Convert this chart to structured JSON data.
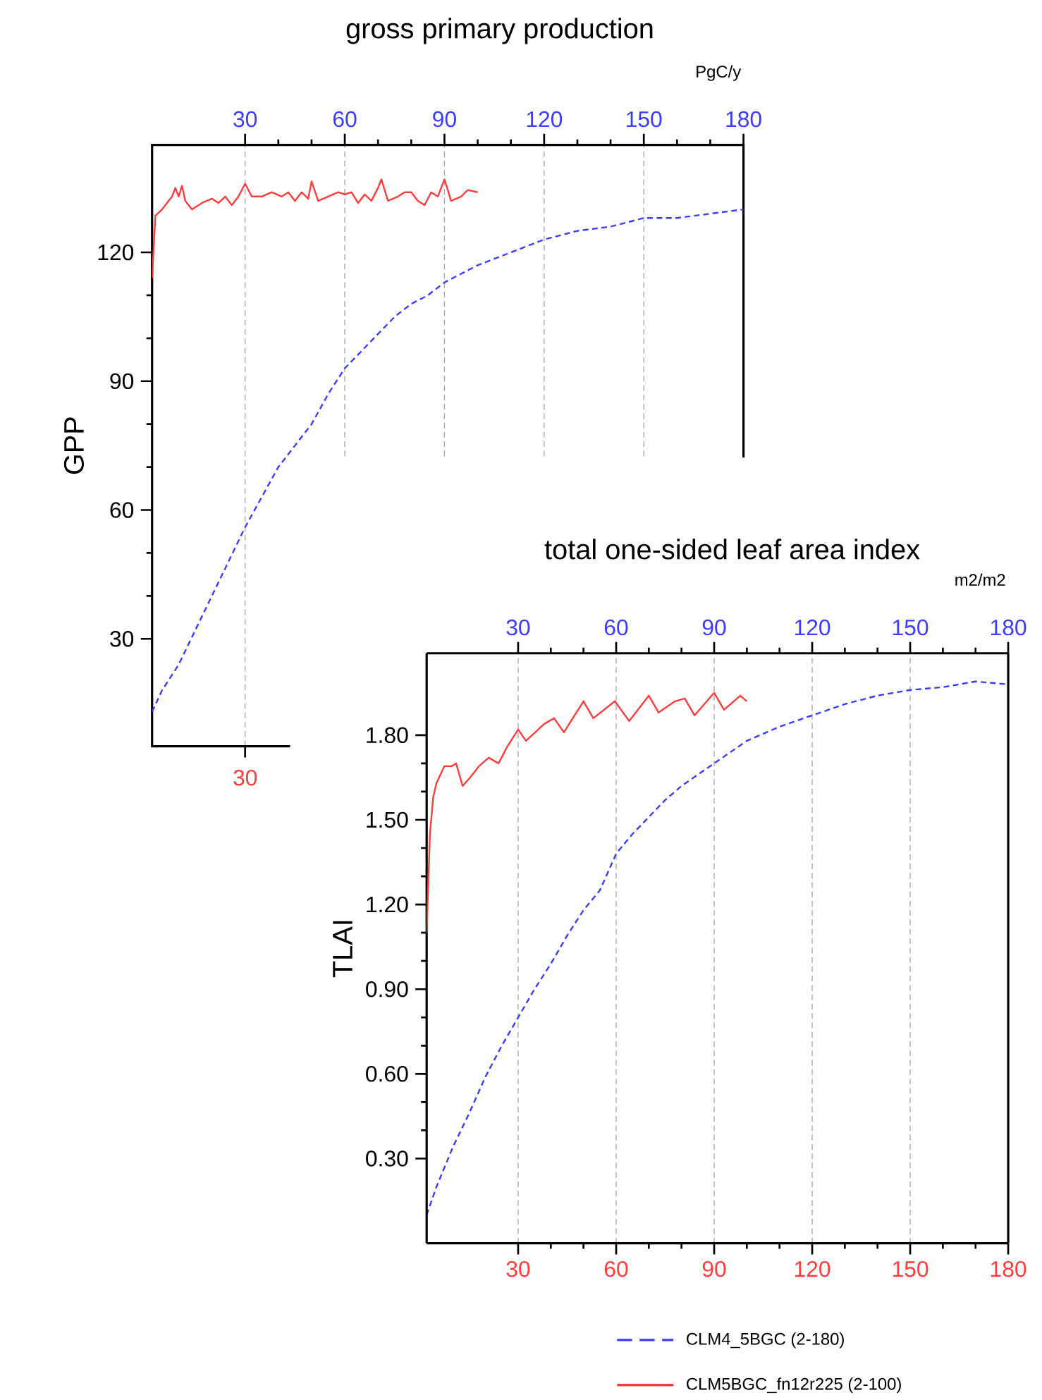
{
  "chart_data": [
    {
      "type": "line",
      "title": "gross primary production",
      "ylabel": "GPP",
      "annotations": [
        "PgC/y",
        {
          "text": "30",
          "x": 30
        }
      ],
      "xlim": [
        2,
        180
      ],
      "ylim": [
        5,
        145
      ],
      "xticks": [
        30,
        60,
        90,
        120,
        150,
        180
      ],
      "yticks": [
        30,
        60,
        90,
        120
      ],
      "grid": "x",
      "series": [
        {
          "color": "#3c3cff",
          "line_style": "dashed",
          "x": [
            2,
            5,
            10,
            15,
            20,
            25,
            30,
            35,
            40,
            45,
            50,
            55,
            60,
            65,
            70,
            75,
            80,
            85,
            90,
            95,
            100,
            110,
            120,
            130,
            140,
            150,
            160,
            170,
            180
          ],
          "values": [
            13,
            18,
            24,
            32,
            40,
            48,
            56,
            63,
            70,
            75,
            80,
            87,
            93,
            97,
            101,
            105,
            108,
            110,
            113,
            115,
            117,
            120,
            123,
            125,
            126,
            128,
            128,
            129,
            130
          ]
        },
        {
          "color": "#ff3c3c",
          "line_style": "solid",
          "x": [
            2,
            3,
            5,
            8,
            9,
            10,
            11,
            12,
            14,
            17,
            20,
            22,
            24,
            26,
            28,
            30,
            32,
            35,
            38,
            41,
            43,
            45,
            47,
            49,
            50,
            52,
            55,
            58,
            60,
            62,
            64,
            66,
            68,
            70,
            71,
            73,
            76,
            78,
            80,
            82,
            84,
            86,
            88,
            90,
            92,
            95,
            97,
            100
          ],
          "values": [
            114,
            128.5,
            130,
            133,
            135,
            133,
            135.5,
            132,
            130,
            131.5,
            132.5,
            131.5,
            133,
            131,
            133,
            136,
            133,
            133,
            134,
            133,
            134,
            132,
            134,
            132.5,
            136.5,
            132,
            133,
            134,
            133.5,
            134,
            131.5,
            133.5,
            132,
            135,
            137,
            132,
            133,
            134,
            134,
            132,
            131,
            134,
            133,
            137,
            132,
            133,
            134.5,
            134
          ]
        }
      ]
    },
    {
      "type": "line",
      "title": "total one-sided leaf area index",
      "ylabel": "TLAI",
      "annotations": [
        "m2/m2"
      ],
      "xlim": [
        2,
        180
      ],
      "x2lim": [
        2,
        180
      ],
      "ylim": [
        0,
        2.09
      ],
      "xticks": [
        30,
        60,
        90,
        120,
        150,
        180
      ],
      "x2ticks": [
        30,
        60,
        90,
        120,
        150,
        180
      ],
      "yticks": [
        {
          "value": 0.3,
          "label": "0.30"
        },
        {
          "value": 0.6,
          "label": "0.60"
        },
        {
          "value": 0.9,
          "label": "0.90"
        },
        {
          "value": 1.2,
          "label": "1.20"
        },
        {
          "value": 1.5,
          "label": "1.50"
        },
        {
          "value": 1.8,
          "label": "1.80"
        }
      ],
      "grid": "x",
      "legend": "bottom",
      "series": [
        {
          "name": "CLM4_5BGC (2-180)",
          "color": "#3c3cff",
          "line_style": "dashed",
          "axis": "x2",
          "x": [
            2,
            5,
            10,
            15,
            20,
            25,
            30,
            35,
            40,
            45,
            50,
            55,
            60,
            65,
            70,
            75,
            80,
            85,
            90,
            95,
            100,
            110,
            120,
            130,
            140,
            150,
            160,
            170,
            180
          ],
          "values": [
            0.1,
            0.2,
            0.34,
            0.46,
            0.59,
            0.7,
            0.8,
            0.9,
            0.99,
            1.09,
            1.18,
            1.25,
            1.38,
            1.45,
            1.51,
            1.57,
            1.62,
            1.66,
            1.7,
            1.74,
            1.78,
            1.83,
            1.87,
            1.91,
            1.94,
            1.96,
            1.97,
            1.99,
            1.98
          ]
        },
        {
          "name": "CLM5BGC_fn12r225 (2-100)",
          "color": "#ff3c3c",
          "line_style": "solid",
          "x": [
            2,
            3,
            4,
            5,
            7.4,
            9.6,
            11,
            13,
            15.3,
            18,
            21,
            24,
            26.7,
            30,
            32.4,
            38,
            41,
            44,
            50,
            53,
            59.6,
            64,
            70,
            73,
            78,
            81,
            84,
            90,
            93,
            98,
            100
          ],
          "values": [
            1.1,
            1.45,
            1.58,
            1.63,
            1.69,
            1.69,
            1.7,
            1.62,
            1.65,
            1.69,
            1.72,
            1.7,
            1.76,
            1.82,
            1.78,
            1.84,
            1.86,
            1.81,
            1.92,
            1.86,
            1.92,
            1.85,
            1.94,
            1.88,
            1.92,
            1.93,
            1.87,
            1.95,
            1.89,
            1.94,
            1.92
          ]
        }
      ]
    }
  ]
}
